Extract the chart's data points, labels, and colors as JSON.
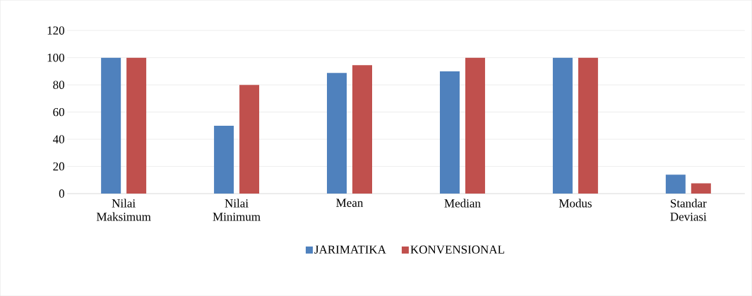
{
  "chart_data": {
    "type": "bar",
    "categories": [
      "Nilai Maksimum",
      "Nilai Minimum",
      "Mean",
      "Median",
      "Modus",
      "Standar Deviasi"
    ],
    "series": [
      {
        "name": "JARIMATIKA",
        "color": "#4f81bd",
        "values": [
          100,
          50,
          88.8,
          90,
          100,
          13.9
        ]
      },
      {
        "name": "KONVENSIONAL",
        "color": "#c0504d",
        "values": [
          100,
          80,
          94.5,
          100,
          100,
          7.6
        ]
      }
    ],
    "ylim": [
      0,
      120
    ],
    "yticks": [
      0,
      20,
      40,
      60,
      80,
      100,
      120
    ],
    "grid": "y",
    "legend": "bottom"
  }
}
